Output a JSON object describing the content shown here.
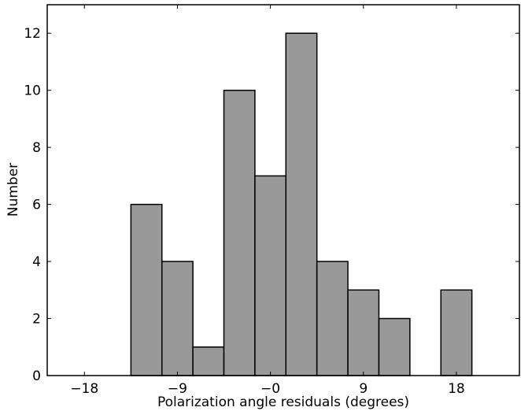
{
  "chart_data": {
    "type": "bar",
    "subtype": "histogram",
    "xlabel": "Polarization angle residuals (degrees)",
    "ylabel": "Number",
    "xlim": [
      -21.6,
      24.1
    ],
    "ylim": [
      0,
      13
    ],
    "xticks": [
      -18,
      -9,
      0,
      9,
      18
    ],
    "xtick_labels": [
      "−18",
      "−9",
      "−0",
      "9",
      "18"
    ],
    "yticks": [
      0,
      2,
      4,
      6,
      8,
      10,
      12
    ],
    "ytick_labels": [
      "0",
      "2",
      "4",
      "6",
      "8",
      "10",
      "12"
    ],
    "bin_width": 3,
    "bins": [
      {
        "left": -13.5,
        "right": -10.5,
        "count": 6
      },
      {
        "left": -10.5,
        "right": -7.5,
        "count": 4
      },
      {
        "left": -7.5,
        "right": -4.5,
        "count": 1
      },
      {
        "left": -4.5,
        "right": -1.5,
        "count": 10
      },
      {
        "left": -1.5,
        "right": 1.5,
        "count": 7
      },
      {
        "left": 1.5,
        "right": 4.5,
        "count": 12
      },
      {
        "left": 4.5,
        "right": 7.5,
        "count": 4
      },
      {
        "left": 7.5,
        "right": 10.5,
        "count": 3
      },
      {
        "left": 10.5,
        "right": 13.5,
        "count": 2
      },
      {
        "left": 13.5,
        "right": 16.5,
        "count": 0
      },
      {
        "left": 16.5,
        "right": 19.5,
        "count": 3
      }
    ],
    "bar_color": "#999999",
    "edge_color": "#000000",
    "grid": false
  }
}
